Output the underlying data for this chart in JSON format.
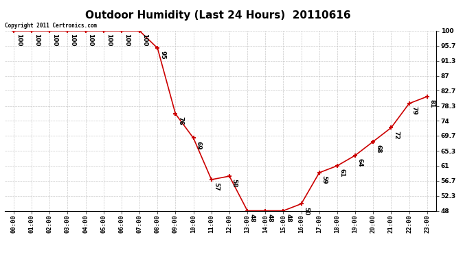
{
  "title": "Outdoor Humidity (Last 24 Hours)  20110616",
  "copyright_text": "Copyright 2011 Certronics.com",
  "x_labels": [
    "00:00",
    "01:00",
    "02:00",
    "03:00",
    "04:00",
    "05:00",
    "06:00",
    "07:00",
    "08:00",
    "09:00",
    "10:00",
    "11:00",
    "12:00",
    "13:00",
    "14:00",
    "15:00",
    "16:00",
    "17:00",
    "18:00",
    "19:00",
    "20:00",
    "21:00",
    "22:00",
    "23:00"
  ],
  "x_values": [
    0,
    1,
    2,
    3,
    4,
    5,
    6,
    7,
    8,
    9,
    10,
    11,
    12,
    13,
    14,
    15,
    16,
    17,
    18,
    19,
    20,
    21,
    22,
    23
  ],
  "y_values": [
    100,
    100,
    100,
    100,
    100,
    100,
    100,
    100,
    95,
    76,
    69,
    57,
    58,
    48,
    48,
    48,
    50,
    59,
    61,
    64,
    68,
    72,
    79,
    81
  ],
  "ylim_min": 48.0,
  "ylim_max": 100.0,
  "y_ticks": [
    48.0,
    52.3,
    56.7,
    61.0,
    65.3,
    69.7,
    74.0,
    78.3,
    82.7,
    87.0,
    91.3,
    95.7,
    100.0
  ],
  "line_color": "#cc0000",
  "marker_color": "#cc0000",
  "bg_color": "#ffffff",
  "grid_color": "#bbbbbb",
  "title_fontsize": 11,
  "label_fontsize": 6.5,
  "annotation_fontsize": 6.5
}
